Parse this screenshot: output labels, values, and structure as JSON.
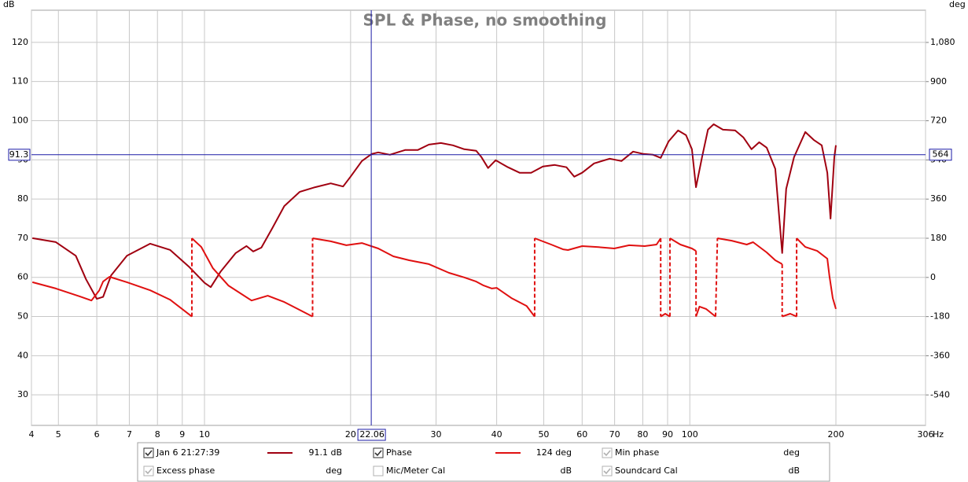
{
  "chart_data": {
    "type": "line",
    "title": "SPL & Phase, no smoothing",
    "y_axis_label": "dB",
    "y2_axis_label": "deg",
    "x_axis_label": "Hz",
    "log_x": true,
    "grid": true,
    "xlim": [
      4.4,
      306
    ],
    "xticks": [
      {
        "value": 4.4,
        "label": "4"
      },
      5,
      6,
      7,
      8,
      9,
      10,
      20,
      30,
      40,
      50,
      60,
      70,
      80,
      90,
      100,
      200,
      306
    ],
    "ylim": [
      22.2,
      128.2
    ],
    "yticks": [
      30,
      40,
      50,
      60,
      70,
      80,
      90,
      100,
      110,
      120
    ],
    "y2lim": [
      -680,
      1228
    ],
    "y2ticks": [
      -540,
      -360,
      -180,
      0,
      180,
      360,
      540,
      720,
      900,
      {
        "value": 1080,
        "label": "1,080"
      }
    ],
    "cursor": {
      "x": 22.06,
      "y": 91.3,
      "y2": 564,
      "color": "#1a1aa6"
    },
    "series": [
      {
        "name": "Jan 6 21:27:39",
        "color": "#a00010",
        "readout": "91.1 dB",
        "x": [
          4.42,
          4.94,
          5.43,
          5.7,
          6.0,
          6.18,
          6.42,
          6.92,
          7.73,
          8.49,
          9.31,
          10.0,
          10.3,
          10.8,
          11.6,
          12.2,
          12.6,
          13.1,
          13.8,
          14.6,
          15.7,
          16.9,
          18.2,
          19.3,
          20,
          21.1,
          22.1,
          22.8,
          24.1,
          25.9,
          27.5,
          29,
          30.7,
          32.5,
          34.3,
          36.3,
          37.2,
          38.4,
          39.8,
          42.2,
          44.6,
          47.1,
          49.8,
          52.7,
          55.7,
          57.8,
          60,
          63.5,
          68.4,
          72.3,
          76.4,
          80.3,
          84,
          87.1,
          90.4,
          94.6,
          98.2,
          101,
          103,
          106,
          109,
          112,
          117,
          124,
          129,
          134,
          139,
          144,
          150,
          155,
          158,
          164,
          173,
          180,
          187,
          192,
          195,
          198.5,
          200
        ],
        "values": [
          70,
          69,
          65.5,
          59.5,
          54.5,
          55,
          60.5,
          65.5,
          68.6,
          67,
          62.6,
          58.6,
          57.5,
          61.5,
          66.2,
          68,
          66.6,
          67.6,
          72.6,
          78.2,
          81.8,
          83,
          84,
          83.2,
          85.7,
          89.7,
          91.5,
          91.9,
          91.3,
          92.5,
          92.5,
          93.9,
          94.3,
          93.7,
          92.7,
          92.3,
          90.7,
          87.9,
          89.9,
          88.1,
          86.7,
          86.7,
          88.3,
          88.7,
          88.1,
          85.7,
          86.7,
          89.1,
          90.3,
          89.7,
          92.1,
          91.5,
          91.3,
          90.5,
          94.7,
          97.5,
          96.3,
          92.7,
          83,
          90.7,
          97.7,
          99.1,
          97.7,
          97.5,
          95.7,
          92.7,
          94.5,
          93.1,
          87.7,
          66.2,
          82.6,
          90.7,
          97.1,
          95.1,
          93.7,
          86.7,
          75,
          90.7,
          93.7
        ]
      },
      {
        "name": "Phase",
        "color": "#e01010",
        "axis": "y2",
        "readout": "124 deg",
        "x": [
          4.42,
          4.94,
          5.53,
          5.85,
          6.07,
          6.18,
          6.37,
          6.92,
          7.73,
          8.49,
          9.42,
          9.42,
          9.42,
          9.85,
          10.4,
          11.2,
          12.5,
          13.5,
          14.6,
          15.7,
          16.7,
          16.7,
          16.7,
          18.2,
          19.6,
          21.1,
          22.8,
          24.5,
          26.4,
          29,
          31.9,
          34.3,
          36.3,
          37.6,
          39.1,
          40,
          42.9,
          46.1,
          47.9,
          47.9,
          47.9,
          51.8,
          54.8,
          56.1,
          60,
          64.4,
          69.9,
          75,
          80.7,
          85.4,
          87.1,
          87.1,
          87.1,
          89,
          91,
          91,
          91,
          95.6,
          101,
          103,
          103,
          103,
          104.7,
          108,
          113,
          113.5,
          114,
          122,
          131,
          135,
          144,
          150,
          155,
          155,
          155,
          161,
          166,
          166,
          166,
          173,
          183,
          192,
          194,
          197,
          200
        ],
        "values": [
          -22,
          -51,
          -87,
          -106,
          -60,
          -19,
          3,
          -22,
          -59,
          -102,
          -180,
          null,
          180,
          140,
          43,
          -37,
          -106,
          -84,
          -113,
          -149,
          -180,
          null,
          180,
          166,
          148,
          158,
          133,
          97,
          79,
          61,
          21,
          0,
          -19,
          -37,
          -51,
          -48,
          -95,
          -131,
          -180,
          null,
          180,
          151,
          129,
          126,
          144,
          140,
          133,
          148,
          144,
          151,
          180,
          null,
          -180,
          -167,
          -180,
          null,
          180,
          151,
          133,
          122,
          null,
          -180,
          -134,
          -145,
          -180,
          null,
          180,
          169,
          151,
          162,
          115,
          79,
          61,
          null,
          -180,
          -167,
          -180,
          null,
          180,
          140,
          122,
          86,
          6,
          -95,
          -145
        ]
      }
    ],
    "other_traces": [
      {
        "name": "Min phase",
        "unit": "deg",
        "checked": true,
        "enabled": false
      },
      {
        "name": "Excess phase",
        "unit": "deg",
        "checked": true,
        "enabled": false
      },
      {
        "name": "Mic/Meter Cal",
        "unit": "dB",
        "checked": false,
        "enabled": false
      },
      {
        "name": "Soundcard Cal",
        "unit": "dB",
        "checked": true,
        "enabled": false
      }
    ]
  }
}
